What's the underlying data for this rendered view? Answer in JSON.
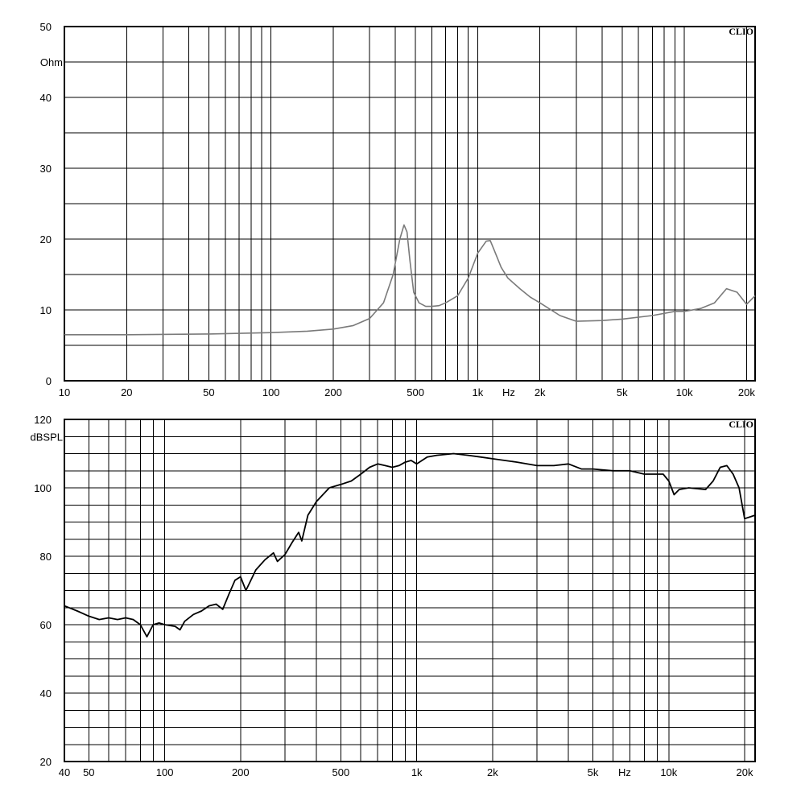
{
  "chart_data": [
    {
      "type": "line",
      "title": "",
      "brand": "CLIO",
      "xscale": "log",
      "xlim": [
        10,
        22000
      ],
      "ylim": [
        0,
        50
      ],
      "ylabel": "Ohm",
      "xunit_label": "Hz",
      "grid": true,
      "line_color": "#7a7a7a",
      "y_ticks": [
        {
          "v": 0,
          "label": "0"
        },
        {
          "v": 10,
          "label": "10"
        },
        {
          "v": 20,
          "label": "20"
        },
        {
          "v": 30,
          "label": "30"
        },
        {
          "v": 40,
          "label": "40"
        },
        {
          "v": 50,
          "label": "50"
        }
      ],
      "x_ticks": [
        {
          "v": 10,
          "label": "10"
        },
        {
          "v": 20,
          "label": "20"
        },
        {
          "v": 50,
          "label": "50"
        },
        {
          "v": 100,
          "label": "100"
        },
        {
          "v": 200,
          "label": "200"
        },
        {
          "v": 500,
          "label": "500"
        },
        {
          "v": 1000,
          "label": "1k"
        },
        {
          "v": 2000,
          "label": "2k"
        },
        {
          "v": 5000,
          "label": "5k"
        },
        {
          "v": 10000,
          "label": "10k"
        },
        {
          "v": 20000,
          "label": "20k"
        }
      ],
      "series": [
        {
          "x": [
            10,
            20,
            50,
            100,
            150,
            200,
            250,
            300,
            350,
            390,
            420,
            440,
            455,
            470,
            490,
            520,
            560,
            600,
            650,
            700,
            800,
            900,
            1000,
            1100,
            1150,
            1200,
            1300,
            1400,
            1600,
            1800,
            2000,
            2500,
            3000,
            4000,
            5000,
            7000,
            9000,
            10000,
            12000,
            14000,
            16000,
            18000,
            20000,
            22000
          ],
          "y": [
            6.5,
            6.5,
            6.6,
            6.8,
            7.0,
            7.3,
            7.8,
            8.8,
            11.0,
            15.0,
            20.0,
            22.0,
            21.0,
            17.0,
            12.5,
            11.0,
            10.5,
            10.5,
            10.6,
            11.0,
            12.0,
            14.5,
            18.0,
            19.7,
            19.8,
            18.5,
            16.0,
            14.5,
            13.0,
            11.8,
            11.0,
            9.2,
            8.4,
            8.5,
            8.7,
            9.2,
            9.8,
            9.8,
            10.2,
            11.0,
            13.0,
            12.5,
            10.8,
            12.0
          ]
        }
      ]
    },
    {
      "type": "line",
      "title": "",
      "brand": "CLIO",
      "xscale": "log",
      "xlim": [
        40,
        22000
      ],
      "ylim": [
        20,
        120
      ],
      "ylabel": "dBSPL",
      "xunit_label": "Hz",
      "grid": true,
      "line_color": "#000000",
      "y_ticks": [
        {
          "v": 20,
          "label": "20"
        },
        {
          "v": 40,
          "label": "40"
        },
        {
          "v": 60,
          "label": "60"
        },
        {
          "v": 80,
          "label": "80"
        },
        {
          "v": 100,
          "label": "100"
        },
        {
          "v": 120,
          "label": "120"
        }
      ],
      "x_ticks": [
        {
          "v": 40,
          "label": "40"
        },
        {
          "v": 50,
          "label": "50"
        },
        {
          "v": 100,
          "label": "100"
        },
        {
          "v": 200,
          "label": "200"
        },
        {
          "v": 500,
          "label": "500"
        },
        {
          "v": 1000,
          "label": "1k"
        },
        {
          "v": 2000,
          "label": "2k"
        },
        {
          "v": 5000,
          "label": "5k"
        },
        {
          "v": 10000,
          "label": "10k"
        },
        {
          "v": 20000,
          "label": "20k"
        }
      ],
      "series": [
        {
          "x": [
            40,
            45,
            50,
            55,
            60,
            65,
            70,
            75,
            80,
            85,
            90,
            95,
            100,
            110,
            115,
            120,
            130,
            140,
            150,
            160,
            170,
            180,
            190,
            200,
            210,
            230,
            250,
            270,
            280,
            300,
            320,
            340,
            350,
            370,
            400,
            450,
            500,
            550,
            600,
            650,
            700,
            750,
            800,
            850,
            900,
            950,
            1000,
            1100,
            1200,
            1400,
            1600,
            1800,
            2000,
            2500,
            3000,
            3500,
            4000,
            4500,
            5000,
            6000,
            7000,
            8000,
            9000,
            9500,
            10000,
            10500,
            11000,
            12000,
            14000,
            15000,
            16000,
            17000,
            18000,
            19000,
            20000,
            21000,
            22000
          ],
          "y": [
            65.5,
            64.0,
            62.5,
            61.5,
            62.0,
            61.5,
            62.0,
            61.5,
            60.0,
            56.5,
            60.0,
            60.5,
            60.0,
            59.5,
            58.5,
            61.0,
            63.0,
            64.0,
            65.5,
            66.0,
            64.5,
            69.0,
            73.0,
            74.0,
            70.0,
            76.0,
            79.0,
            81.0,
            78.5,
            80.5,
            84.0,
            87.0,
            84.5,
            92.0,
            96.0,
            100.0,
            101.0,
            102.0,
            104.0,
            106.0,
            107.0,
            106.5,
            106.0,
            106.5,
            107.5,
            108.0,
            107.0,
            109.0,
            109.5,
            110.0,
            109.5,
            109.0,
            108.5,
            107.5,
            106.5,
            106.5,
            107.0,
            105.5,
            105.5,
            105.0,
            105.0,
            104.0,
            104.0,
            104.0,
            102.0,
            98.0,
            99.5,
            100.0,
            99.5,
            102.0,
            106.0,
            106.5,
            104.0,
            100.0,
            91.0,
            91.5,
            92.0
          ]
        }
      ]
    }
  ]
}
